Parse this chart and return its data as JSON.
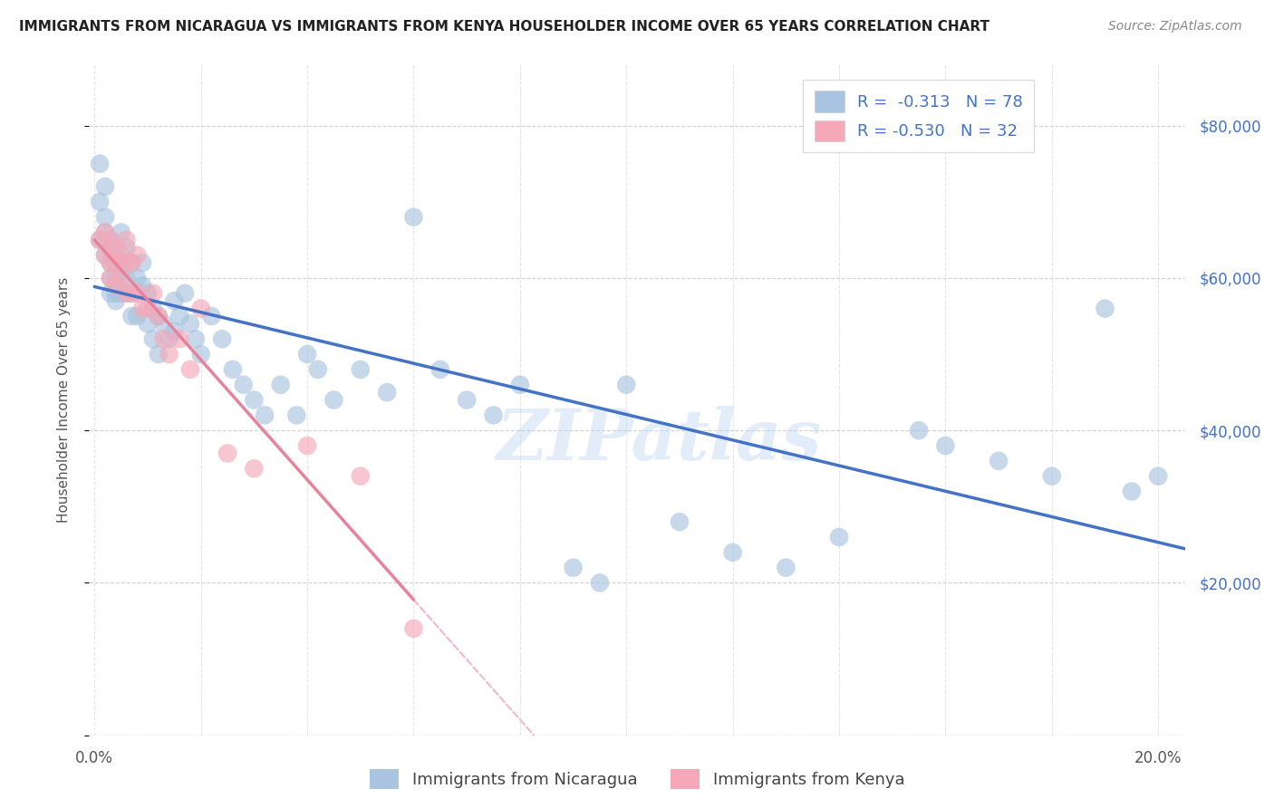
{
  "title": "IMMIGRANTS FROM NICARAGUA VS IMMIGRANTS FROM KENYA HOUSEHOLDER INCOME OVER 65 YEARS CORRELATION CHART",
  "source": "Source: ZipAtlas.com",
  "ylabel": "Householder Income Over 65 years",
  "xlim": [
    -0.001,
    0.205
  ],
  "ylim": [
    0,
    88000
  ],
  "xticks": [
    0.0,
    0.02,
    0.04,
    0.06,
    0.08,
    0.1,
    0.12,
    0.14,
    0.16,
    0.18,
    0.2
  ],
  "yticks": [
    0,
    20000,
    40000,
    60000,
    80000
  ],
  "yticklabels_right": [
    "",
    "$20,000",
    "$40,000",
    "$60,000",
    "$80,000"
  ],
  "nicaragua_color": "#a8c4e0",
  "kenya_color": "#f4a8b8",
  "nicaragua_line_color": "#4472C4",
  "kenya_line_color": "#e8829a",
  "kenya_line_dashed_color": "#f0b8c8",
  "legend_R_nicaragua": "-0.313",
  "legend_N_nicaragua": "78",
  "legend_R_kenya": "-0.530",
  "legend_N_kenya": "32",
  "nicaragua_x": [
    0.001,
    0.001,
    0.001,
    0.002,
    0.002,
    0.002,
    0.002,
    0.003,
    0.003,
    0.003,
    0.003,
    0.003,
    0.004,
    0.004,
    0.004,
    0.004,
    0.004,
    0.005,
    0.005,
    0.005,
    0.005,
    0.006,
    0.006,
    0.006,
    0.007,
    0.007,
    0.007,
    0.008,
    0.008,
    0.009,
    0.009,
    0.01,
    0.01,
    0.011,
    0.011,
    0.012,
    0.012,
    0.013,
    0.014,
    0.015,
    0.015,
    0.016,
    0.017,
    0.018,
    0.019,
    0.02,
    0.022,
    0.024,
    0.026,
    0.028,
    0.03,
    0.032,
    0.035,
    0.038,
    0.04,
    0.042,
    0.045,
    0.05,
    0.055,
    0.06,
    0.065,
    0.07,
    0.075,
    0.08,
    0.09,
    0.095,
    0.1,
    0.11,
    0.12,
    0.13,
    0.14,
    0.155,
    0.16,
    0.17,
    0.18,
    0.19,
    0.195,
    0.2
  ],
  "nicaragua_y": [
    75000,
    70000,
    65000,
    68000,
    63000,
    72000,
    66000,
    65000,
    62000,
    60000,
    64000,
    58000,
    63000,
    60000,
    57000,
    62000,
    58000,
    61000,
    58000,
    62000,
    66000,
    60000,
    64000,
    58000,
    62000,
    58000,
    55000,
    60000,
    55000,
    59000,
    62000,
    58000,
    54000,
    56000,
    52000,
    55000,
    50000,
    54000,
    52000,
    57000,
    53000,
    55000,
    58000,
    54000,
    52000,
    50000,
    55000,
    52000,
    48000,
    46000,
    44000,
    42000,
    46000,
    42000,
    50000,
    48000,
    44000,
    48000,
    45000,
    68000,
    48000,
    44000,
    42000,
    46000,
    22000,
    20000,
    46000,
    28000,
    24000,
    22000,
    26000,
    40000,
    38000,
    36000,
    34000,
    56000,
    32000,
    34000
  ],
  "kenya_x": [
    0.001,
    0.002,
    0.002,
    0.003,
    0.003,
    0.003,
    0.004,
    0.004,
    0.004,
    0.005,
    0.005,
    0.006,
    0.006,
    0.006,
    0.007,
    0.007,
    0.008,
    0.008,
    0.009,
    0.01,
    0.011,
    0.012,
    0.013,
    0.014,
    0.016,
    0.018,
    0.02,
    0.025,
    0.03,
    0.04,
    0.05,
    0.06
  ],
  "kenya_y": [
    65000,
    66000,
    63000,
    65000,
    62000,
    60000,
    64000,
    62000,
    59000,
    63000,
    60000,
    65000,
    62000,
    58000,
    62000,
    58000,
    63000,
    58000,
    56000,
    56000,
    58000,
    55000,
    52000,
    50000,
    52000,
    48000,
    56000,
    37000,
    35000,
    38000,
    34000,
    14000
  ],
  "watermark": "ZIPatlas",
  "background_color": "#ffffff",
  "grid_color": "#cccccc"
}
